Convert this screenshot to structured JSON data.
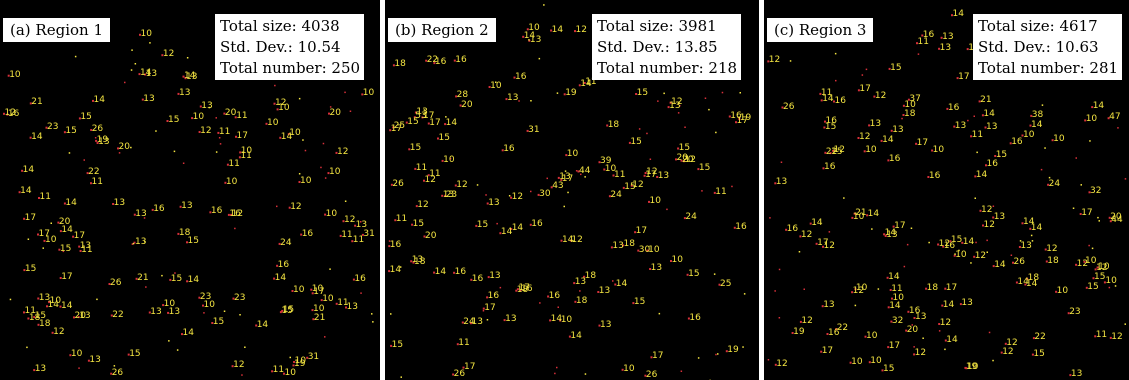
{
  "colors": {
    "background": "#000000",
    "number_text": "#f5e642",
    "particle": "#d8303a",
    "label_bg": "#ffffff"
  },
  "panels": [
    {
      "label": "(a) Region 1",
      "stats": {
        "size": "Total size: 4038",
        "std": "Std. Dev.: 10.54",
        "number": "Total number: 250"
      },
      "numbers": [
        "10",
        "13",
        "23",
        "14",
        "17",
        "26",
        "14",
        "19",
        "11",
        "20",
        "13",
        "13",
        "17",
        "18",
        "14",
        "10",
        "11",
        "10",
        "11",
        "15",
        "10",
        "10",
        "15",
        "17",
        "11",
        "31",
        "13",
        "11",
        "12",
        "12",
        "13",
        "21",
        "26",
        "15",
        "11",
        "18",
        "14",
        "16",
        "18",
        "13",
        "10",
        "14",
        "10",
        "13",
        "11",
        "12",
        "12",
        "13",
        "14",
        "12",
        "11",
        "13",
        "10",
        "13",
        "14",
        "16",
        "23",
        "13",
        "14",
        "15",
        "10",
        "13",
        "13",
        "10",
        "15",
        "24",
        "16",
        "10",
        "16",
        "22",
        "14",
        "13",
        "11",
        "26",
        "10",
        "17",
        "14",
        "19",
        "10",
        "21",
        "11",
        "13",
        "15",
        "21",
        "22",
        "10",
        "10",
        "16",
        "12",
        "15",
        "23",
        "20",
        "11",
        "17",
        "31",
        "11",
        "12",
        "12",
        "14",
        "15",
        "14",
        "10",
        "15",
        "20",
        "13",
        "10",
        "10",
        "20",
        "10",
        "15",
        "12",
        "10",
        "14",
        "13",
        "16",
        "20",
        "15",
        "13",
        "10",
        "13",
        "14",
        "10",
        "12",
        "14",
        "15",
        "17",
        "10",
        "16"
      ]
    },
    {
      "label": "(b) Region 2",
      "stats": {
        "size": "Total size: 3981",
        "std": "Std. Dev.: 13.85",
        "number": "Total number: 218"
      },
      "numbers": [
        "15",
        "11",
        "25",
        "16",
        "31",
        "16",
        "13",
        "53",
        "10",
        "30",
        "26",
        "12",
        "11",
        "16",
        "43",
        "16",
        "14",
        "12",
        "20",
        "19",
        "10",
        "10",
        "18",
        "14",
        "17",
        "13",
        "11",
        "13",
        "13",
        "10",
        "14",
        "13",
        "16",
        "13",
        "26",
        "24",
        "39",
        "20",
        "13",
        "17",
        "18",
        "14",
        "13",
        "16",
        "13",
        "15",
        "12",
        "10",
        "24",
        "18",
        "13",
        "12",
        "15",
        "14",
        "25",
        "15",
        "12",
        "17",
        "13",
        "10",
        "13",
        "16",
        "13",
        "13",
        "18",
        "11",
        "20",
        "10",
        "18",
        "15",
        "26",
        "15",
        "14",
        "12",
        "14",
        "14",
        "16",
        "30",
        "12",
        "15",
        "19",
        "16",
        "15",
        "10",
        "13",
        "11",
        "17",
        "16",
        "17",
        "15",
        "22",
        "28",
        "15",
        "13",
        "44",
        "11",
        "12",
        "16",
        "17",
        "12",
        "15",
        "18",
        "17",
        "15",
        "10",
        "16",
        "14",
        "24",
        "11",
        "17",
        "18",
        "14",
        "13",
        "16",
        "17",
        "15",
        "16",
        "10",
        "17",
        "19",
        "12",
        "14",
        "20",
        "23",
        "17",
        "14"
      ]
    },
    {
      "label": "(c) Region 3",
      "stats": {
        "size": "Total size: 4617",
        "std": "Std. Dev.: 10.63",
        "number": "Total number: 281"
      },
      "numbers": [
        "12",
        "16",
        "10",
        "13",
        "38",
        "19",
        "24",
        "13",
        "13",
        "11",
        "15",
        "10",
        "17",
        "12",
        "11",
        "10",
        "16",
        "14",
        "13",
        "13",
        "10",
        "12",
        "10",
        "12",
        "12",
        "14",
        "14",
        "13",
        "20",
        "13",
        "16",
        "14",
        "14",
        "13",
        "10",
        "12",
        "18",
        "14",
        "14",
        "16",
        "17",
        "14",
        "12",
        "17",
        "16",
        "10",
        "10",
        "13",
        "16",
        "14",
        "17",
        "12",
        "14",
        "14",
        "15",
        "16",
        "26",
        "19",
        "10",
        "14",
        "15",
        "10",
        "13",
        "16",
        "15",
        "15",
        "14",
        "12",
        "12",
        "22",
        "12",
        "13",
        "12",
        "17",
        "15",
        "10",
        "37",
        "21",
        "14",
        "12",
        "11",
        "16",
        "12",
        "15",
        "18",
        "14",
        "13",
        "11",
        "12",
        "18",
        "10",
        "22",
        "13",
        "16",
        "12",
        "14",
        "12",
        "16",
        "10",
        "20",
        "12",
        "10",
        "18",
        "14",
        "16",
        "14",
        "47",
        "12",
        "17",
        "10",
        "11",
        "12",
        "15",
        "13",
        "23",
        "10",
        "32",
        "26",
        "15",
        "22",
        "10",
        "14",
        "21",
        "17",
        "12",
        "10",
        "17",
        "32",
        "44",
        "16",
        "17",
        "13",
        "14"
      ]
    }
  ]
}
